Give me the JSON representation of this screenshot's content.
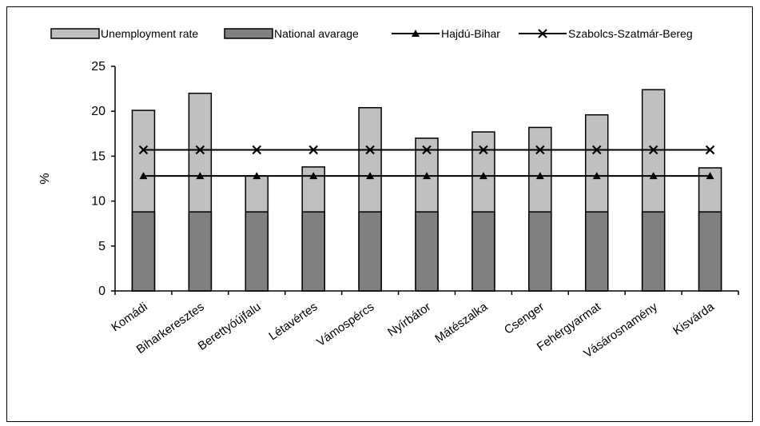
{
  "chart_data": {
    "type": "bar",
    "title": "",
    "xlabel": "",
    "ylabel": "%",
    "ylim": [
      0,
      25
    ],
    "yticks": [
      0,
      5,
      10,
      15,
      20,
      25
    ],
    "grid": false,
    "legend_position": "top",
    "categories": [
      "Komádi",
      "Biharkeresztes",
      "Berettyóújfalu",
      "Létavértes",
      "Vámospércs",
      "Nyírbátor",
      "Mátészalka",
      "Csenger",
      "Fehérgyarmat",
      "Vásárosnamény",
      "Kisvárda"
    ],
    "bar_series": [
      {
        "name": "Unemployment rate",
        "color": "#c0c0c0",
        "values": [
          20.1,
          22.0,
          12.8,
          13.8,
          20.4,
          17.0,
          17.7,
          18.2,
          19.6,
          22.4,
          13.7
        ]
      },
      {
        "name": "National avarage",
        "color": "#808080",
        "values": [
          8.8,
          8.8,
          8.8,
          8.8,
          8.8,
          8.8,
          8.8,
          8.8,
          8.8,
          8.8,
          8.8
        ]
      }
    ],
    "line_series": [
      {
        "name": "Hajdú-Bihar",
        "marker": "triangle",
        "values": [
          12.8,
          12.8,
          12.8,
          12.8,
          12.8,
          12.8,
          12.8,
          12.8,
          12.8,
          12.8,
          12.8
        ]
      },
      {
        "name": "Szabolcs-Szatmár-Bereg",
        "marker": "x",
        "values": [
          15.7,
          15.7,
          15.7,
          15.7,
          15.7,
          15.7,
          15.7,
          15.7,
          15.7,
          15.7,
          15.7
        ]
      }
    ]
  }
}
